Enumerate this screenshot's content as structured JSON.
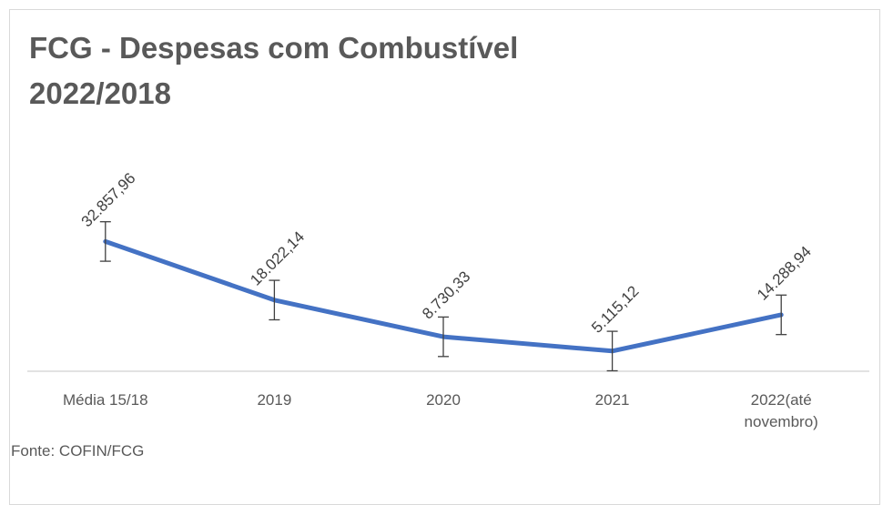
{
  "chart_data": {
    "type": "line",
    "title": "FCG - Despesas com Combustível 2022/2018",
    "categories": [
      "Média 15/18",
      "2019",
      "2020",
      "2021",
      "2022(até novembro)"
    ],
    "values": [
      32857.96,
      18022.14,
      8730.33,
      5115.12,
      14288.94
    ],
    "value_labels": [
      "32.857,96",
      "18.022,14",
      "8.730,33",
      "5.115,12",
      "14.288,94"
    ],
    "errors": [
      5000,
      5000,
      5000,
      5000,
      5000
    ],
    "color": "#4472c4",
    "ylim": [
      0,
      50000
    ],
    "note": "Fonte: COFIN/FCG"
  }
}
